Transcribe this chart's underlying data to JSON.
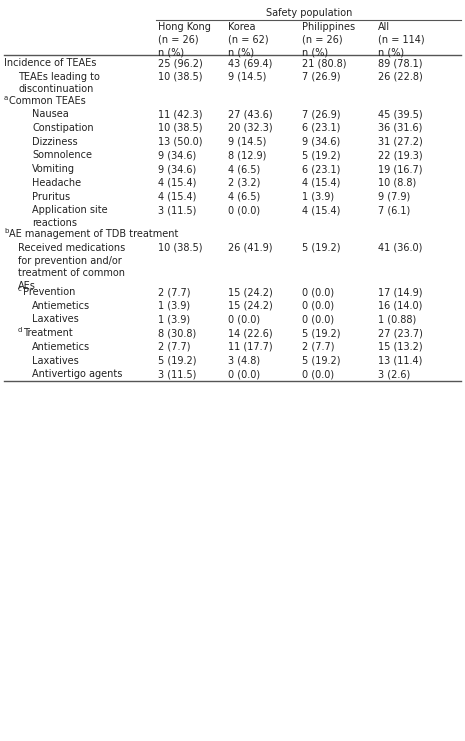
{
  "header_group": "Safety population",
  "col_headers": [
    "Hong Kong\n(n = 26)\nn (%)",
    "Korea\n(n = 62)\nn (%)",
    "Philippines\n(n = 26)\nn (%)",
    "All\n(n = 114)\nn (%)"
  ],
  "rows": [
    {
      "label": "Incidence of TEAEs",
      "indent": 0,
      "prefix": "",
      "values": [
        "25 (96.2)",
        "43 (69.4)",
        "21 (80.8)",
        "89 (78.1)"
      ],
      "header_only": false
    },
    {
      "label": "TEAEs leading to\ndiscontinuation",
      "indent": 1,
      "prefix": "",
      "values": [
        "10 (38.5)",
        "9 (14.5)",
        "7 (26.9)",
        "26 (22.8)"
      ],
      "header_only": false
    },
    {
      "label": "Common TEAEs",
      "indent": 0,
      "prefix": "a",
      "values": [],
      "header_only": true
    },
    {
      "label": "Nausea",
      "indent": 2,
      "prefix": "",
      "values": [
        "11 (42.3)",
        "27 (43.6)",
        "7 (26.9)",
        "45 (39.5)"
      ],
      "header_only": false
    },
    {
      "label": "Constipation",
      "indent": 2,
      "prefix": "",
      "values": [
        "10 (38.5)",
        "20 (32.3)",
        "6 (23.1)",
        "36 (31.6)"
      ],
      "header_only": false
    },
    {
      "label": "Dizziness",
      "indent": 2,
      "prefix": "",
      "values": [
        "13 (50.0)",
        "9 (14.5)",
        "9 (34.6)",
        "31 (27.2)"
      ],
      "header_only": false
    },
    {
      "label": "Somnolence",
      "indent": 2,
      "prefix": "",
      "values": [
        "9 (34.6)",
        "8 (12.9)",
        "5 (19.2)",
        "22 (19.3)"
      ],
      "header_only": false
    },
    {
      "label": "Vomiting",
      "indent": 2,
      "prefix": "",
      "values": [
        "9 (34.6)",
        "4 (6.5)",
        "6 (23.1)",
        "19 (16.7)"
      ],
      "header_only": false
    },
    {
      "label": "Headache",
      "indent": 2,
      "prefix": "",
      "values": [
        "4 (15.4)",
        "2 (3.2)",
        "4 (15.4)",
        "10 (8.8)"
      ],
      "header_only": false
    },
    {
      "label": "Pruritus",
      "indent": 2,
      "prefix": "",
      "values": [
        "4 (15.4)",
        "4 (6.5)",
        "1 (3.9)",
        "9 (7.9)"
      ],
      "header_only": false
    },
    {
      "label": "Application site\nreactions",
      "indent": 2,
      "prefix": "",
      "values": [
        "3 (11.5)",
        "0 (0.0)",
        "4 (15.4)",
        "7 (6.1)"
      ],
      "header_only": false
    },
    {
      "label": "AE management of TDB treatment",
      "indent": 0,
      "prefix": "b",
      "values": [],
      "header_only": true
    },
    {
      "label": "Received medications\nfor prevention and/or\ntreatment of common\nAEs",
      "indent": 1,
      "prefix": "",
      "values": [
        "10 (38.5)",
        "26 (41.9)",
        "5 (19.2)",
        "41 (36.0)"
      ],
      "header_only": false
    },
    {
      "label": "Prevention",
      "indent": 1,
      "prefix": "c",
      "values": [
        "2 (7.7)",
        "15 (24.2)",
        "0 (0.0)",
        "17 (14.9)"
      ],
      "header_only": false
    },
    {
      "label": "Antiemetics",
      "indent": 2,
      "prefix": "",
      "values": [
        "1 (3.9)",
        "15 (24.2)",
        "0 (0.0)",
        "16 (14.0)"
      ],
      "header_only": false
    },
    {
      "label": "Laxatives",
      "indent": 2,
      "prefix": "",
      "values": [
        "1 (3.9)",
        "0 (0.0)",
        "0 (0.0)",
        "1 (0.88)"
      ],
      "header_only": false
    },
    {
      "label": "Treatment",
      "indent": 1,
      "prefix": "d",
      "values": [
        "8 (30.8)",
        "14 (22.6)",
        "5 (19.2)",
        "27 (23.7)"
      ],
      "header_only": false
    },
    {
      "label": "Antiemetics",
      "indent": 2,
      "prefix": "",
      "values": [
        "2 (7.7)",
        "11 (17.7)",
        "2 (7.7)",
        "15 (13.2)"
      ],
      "header_only": false
    },
    {
      "label": "Laxatives",
      "indent": 2,
      "prefix": "",
      "values": [
        "5 (19.2)",
        "3 (4.8)",
        "5 (19.2)",
        "13 (11.4)"
      ],
      "header_only": false
    },
    {
      "label": "Antivertigo agents",
      "indent": 2,
      "prefix": "",
      "values": [
        "3 (11.5)",
        "0 (0.0)",
        "0 (0.0)",
        "3 (2.6)"
      ],
      "header_only": false
    }
  ],
  "bg_color": "#ffffff",
  "text_color": "#222222",
  "line_color": "#555555",
  "font_size": 7.0
}
